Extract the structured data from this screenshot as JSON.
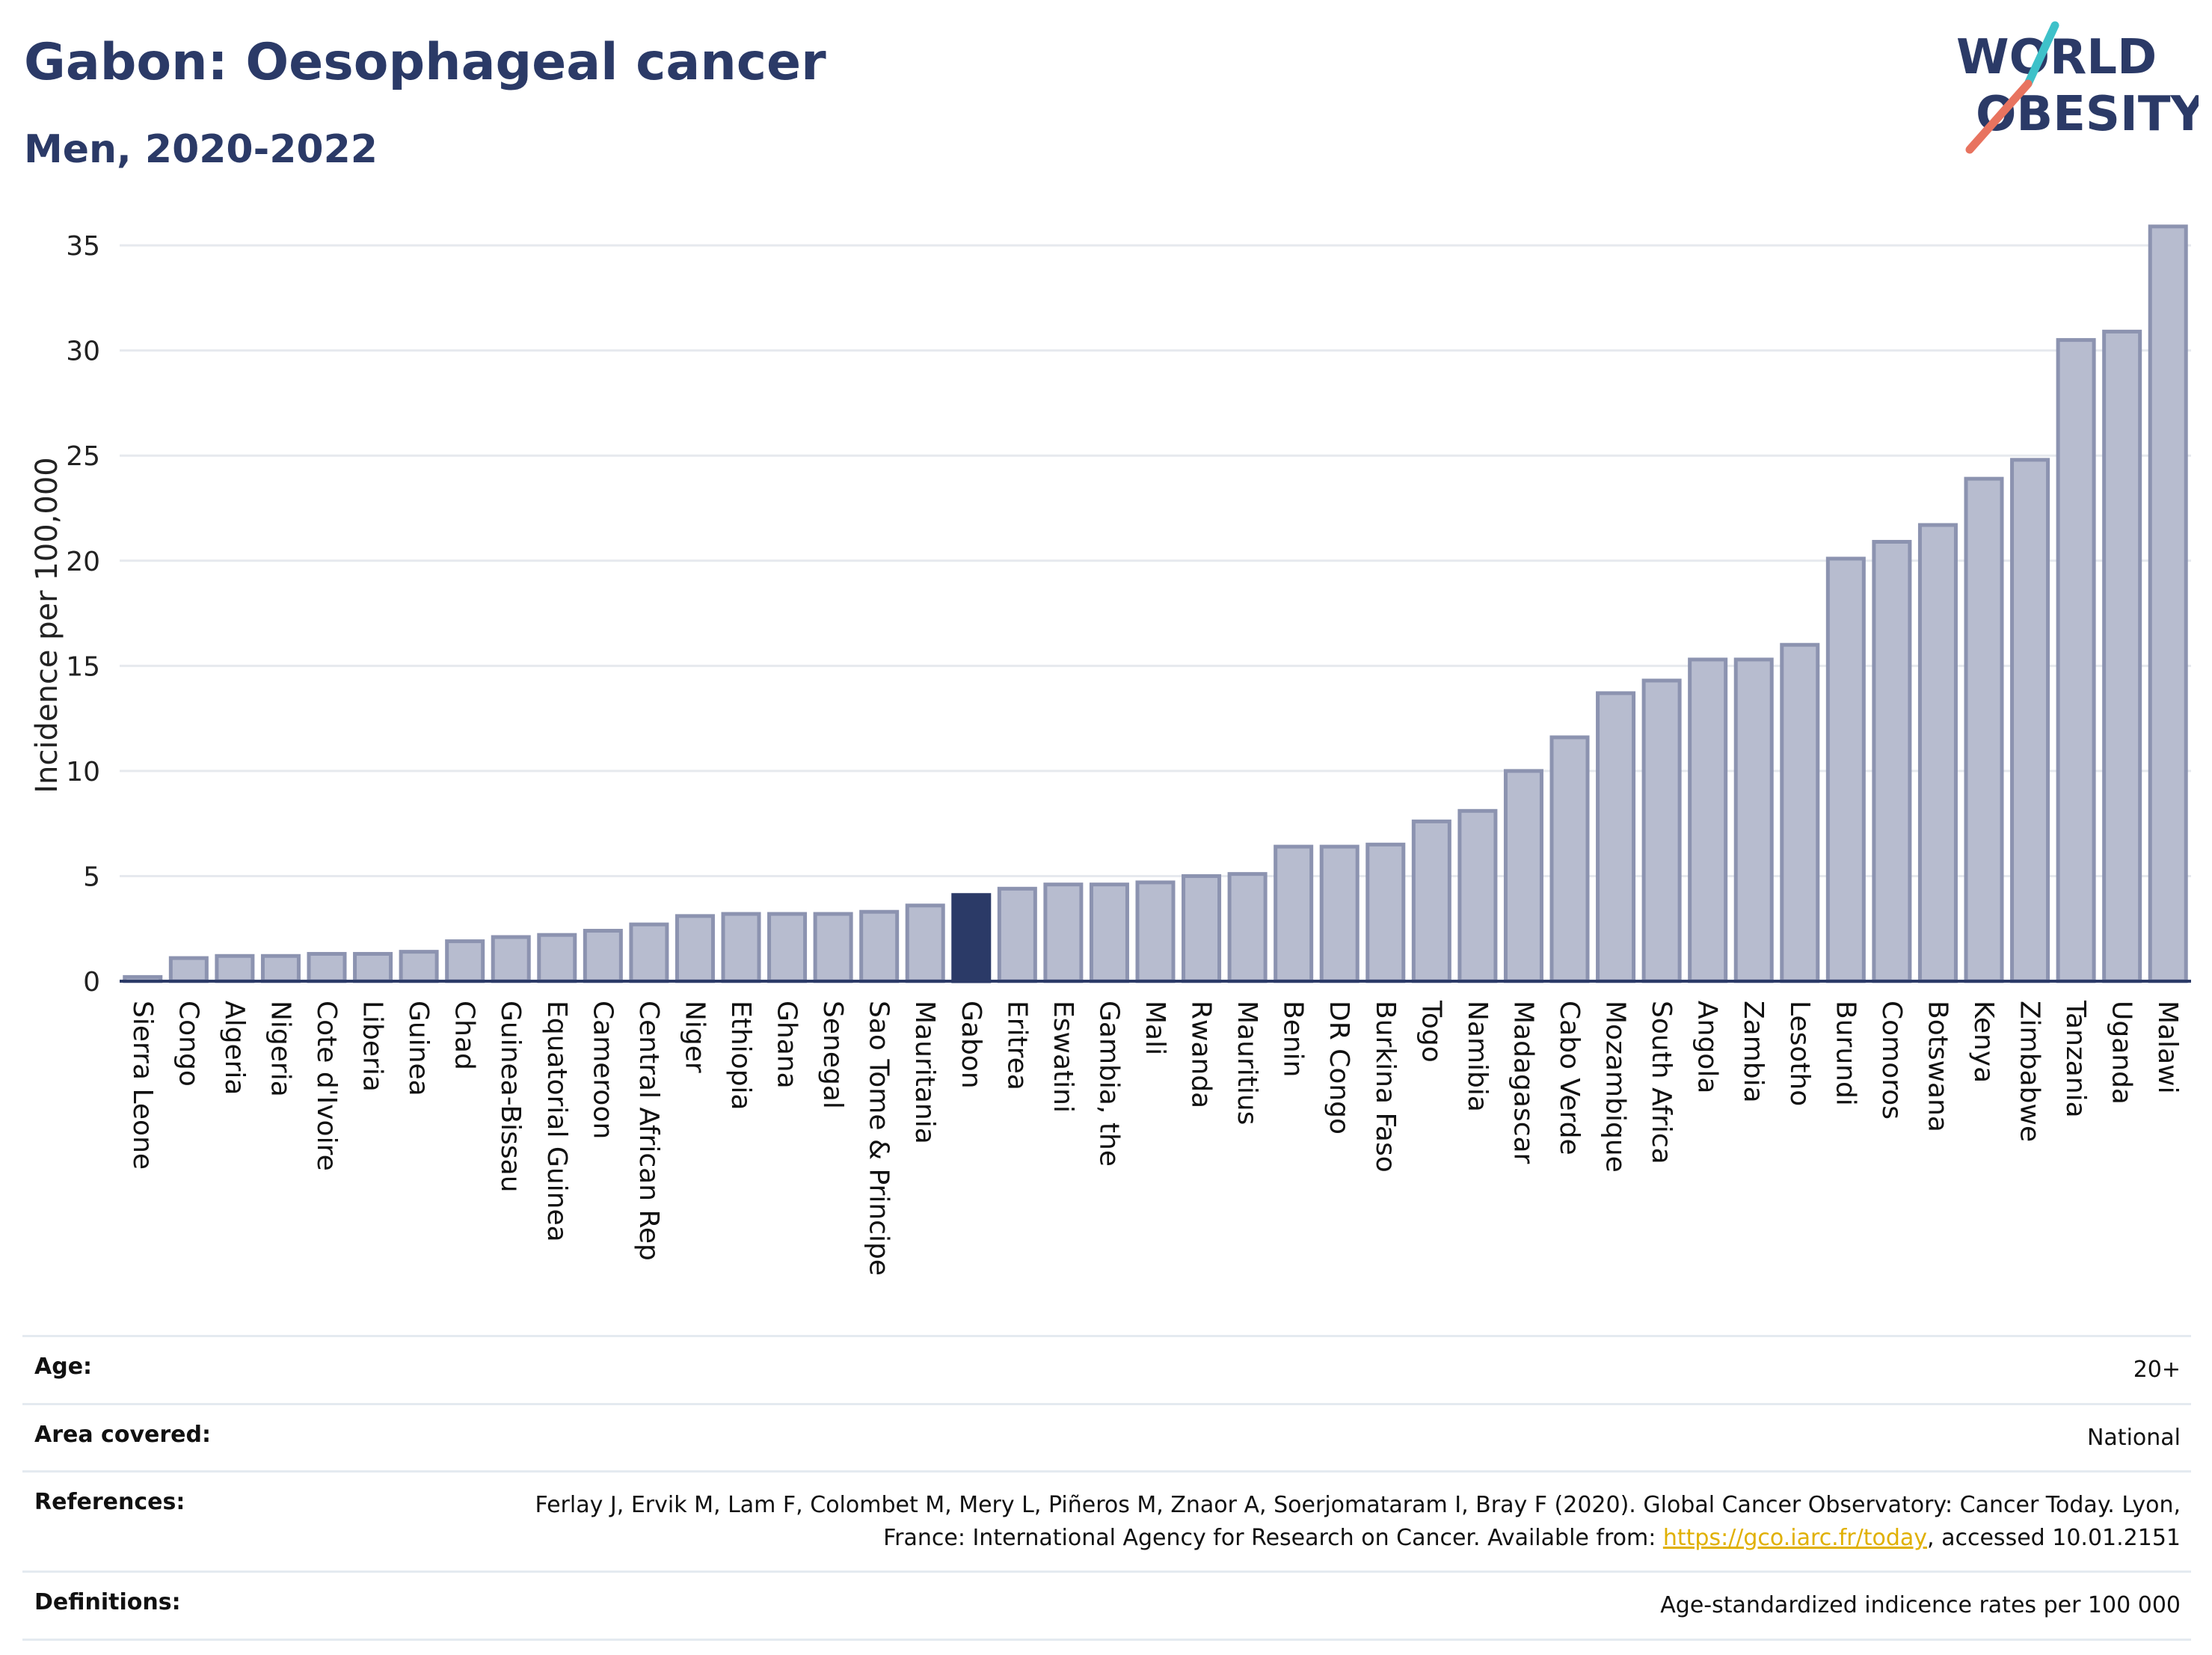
{
  "header": {
    "title": "Gabon: Oesophageal cancer",
    "subtitle": "Men, 2020-2022",
    "logo_line1": "WORLD",
    "logo_line2": "OBESITY"
  },
  "colors": {
    "bar_fill": "#b7bccf",
    "bar_stroke": "#8c93b0",
    "highlight": "#2b3a67",
    "title": "#2b3a67",
    "logo_teal": "#3ec1c9",
    "logo_red": "#e8735f",
    "link": "#e0b000"
  },
  "chart_data": {
    "type": "bar",
    "title": "Gabon: Oesophageal cancer",
    "subtitle": "Men, 2020-2022",
    "xlabel": "",
    "ylabel": "Incidence per 100,000",
    "ylim": [
      0,
      36
    ],
    "yticks": [
      0,
      5,
      10,
      15,
      20,
      25,
      30,
      35
    ],
    "grid": true,
    "highlight": "Gabon",
    "categories": [
      "Sierra Leone",
      "Congo",
      "Algeria",
      "Nigeria",
      "Cote d'Ivoire",
      "Liberia",
      "Guinea",
      "Chad",
      "Guinea-Bissau",
      "Equatorial Guinea",
      "Cameroon",
      "Central African Rep",
      "Niger",
      "Ethiopia",
      "Ghana",
      "Senegal",
      "Sao Tome & Principe",
      "Mauritania",
      "Gabon",
      "Eritrea",
      "Eswatini",
      "Gambia, the",
      "Mali",
      "Rwanda",
      "Mauritius",
      "Benin",
      "DR Congo",
      "Burkina Faso",
      "Togo",
      "Namibia",
      "Madagascar",
      "Cabo Verde",
      "Mozambique",
      "South Africa",
      "Angola",
      "Zambia",
      "Lesotho",
      "Burundi",
      "Comoros",
      "Botswana",
      "Kenya",
      "Zimbabwe",
      "Tanzania",
      "Uganda",
      "Malawi"
    ],
    "values": [
      0.2,
      1.1,
      1.2,
      1.2,
      1.3,
      1.3,
      1.4,
      1.9,
      2.1,
      2.2,
      2.4,
      2.7,
      3.1,
      3.2,
      3.2,
      3.2,
      3.3,
      3.6,
      4.1,
      4.4,
      4.6,
      4.6,
      4.7,
      5.0,
      5.1,
      6.4,
      6.4,
      6.5,
      7.6,
      8.1,
      10.0,
      11.6,
      13.7,
      14.3,
      15.3,
      15.3,
      16.0,
      20.1,
      20.9,
      21.7,
      23.9,
      24.8,
      30.5,
      30.9,
      35.9
    ]
  },
  "info": {
    "rows": [
      {
        "label": "Age:",
        "value": "20+"
      },
      {
        "label": "Area covered:",
        "value": "National"
      },
      {
        "label": "References:",
        "value_prefix": "Ferlay J, Ervik M, Lam F, Colombet M, Mery L, Piñeros M, Znaor A, Soerjomataram I, Bray F (2020). Global Cancer Observatory: Cancer Today. Lyon, France: International Agency for Research on Cancer. Available from: ",
        "link": "https://gco.iarc.fr/today",
        "value_suffix": ", accessed 10.01.2151"
      },
      {
        "label": "Definitions:",
        "value": "Age-standardized indicence rates per 100 000"
      }
    ]
  }
}
